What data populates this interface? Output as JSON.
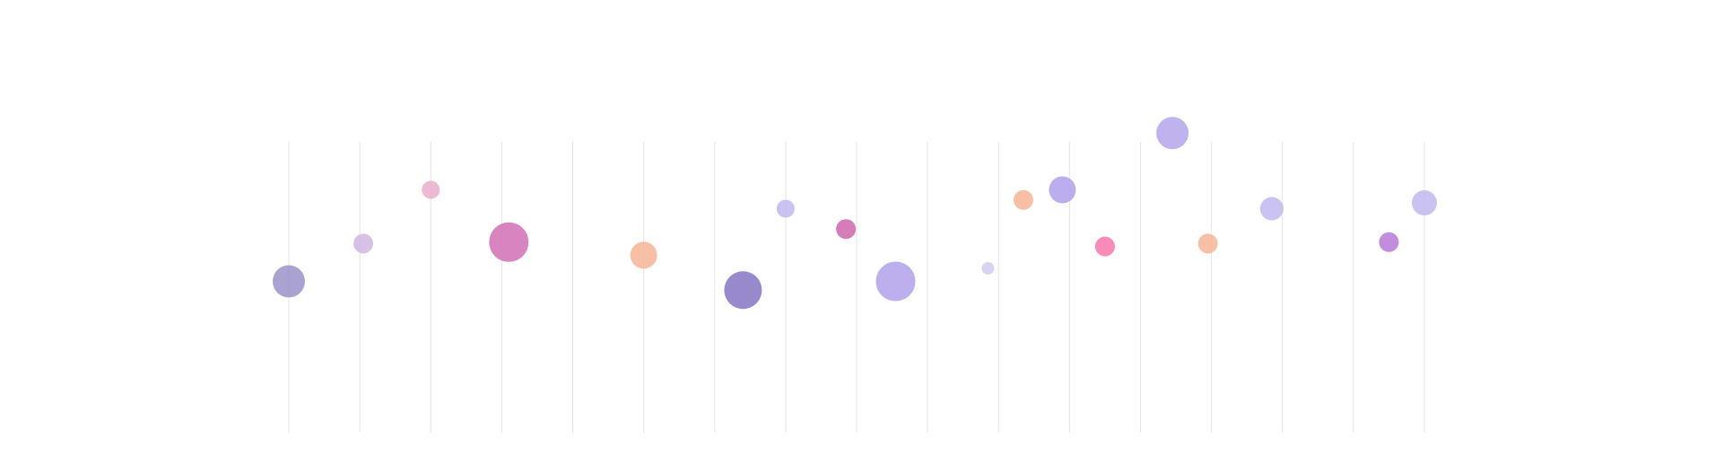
{
  "chart_data": {
    "type": "scatter",
    "title": "",
    "xlabel": "",
    "ylabel": "",
    "xlim": [
      0,
      16
    ],
    "ylim": [
      0,
      100
    ],
    "grid": "vertical",
    "legend": "none",
    "points": [
      {
        "x": 0.0,
        "y": 52.0,
        "size": 18,
        "color": "#9b93c9",
        "opacity": 0.85
      },
      {
        "x": 1.05,
        "y": 65.0,
        "size": 11,
        "color": "#cdb3e0",
        "opacity": 0.8
      },
      {
        "x": 2.0,
        "y": 83.5,
        "size": 10,
        "color": "#e9aecb",
        "opacity": 0.85
      },
      {
        "x": 3.1,
        "y": 65.5,
        "size": 22,
        "color": "#d477b9",
        "opacity": 0.9
      },
      {
        "x": 5.0,
        "y": 61.0,
        "size": 15,
        "color": "#f6b597",
        "opacity": 0.85
      },
      {
        "x": 6.4,
        "y": 49.0,
        "size": 21,
        "color": "#8d7cc6",
        "opacity": 0.9
      },
      {
        "x": 7.0,
        "y": 77.0,
        "size": 10,
        "color": "#c1b7ef",
        "opacity": 0.85
      },
      {
        "x": 7.85,
        "y": 70.0,
        "size": 11,
        "color": "#cf6fb0",
        "opacity": 0.9
      },
      {
        "x": 8.55,
        "y": 52.0,
        "size": 22,
        "color": "#b6a6ec",
        "opacity": 0.9
      },
      {
        "x": 9.85,
        "y": 56.5,
        "size": 7,
        "color": "#cfcbf1",
        "opacity": 0.85
      },
      {
        "x": 10.35,
        "y": 80.0,
        "size": 11,
        "color": "#f6b597",
        "opacity": 0.85
      },
      {
        "x": 10.9,
        "y": 83.5,
        "size": 15,
        "color": "#b09fec",
        "opacity": 0.85
      },
      {
        "x": 11.5,
        "y": 64.0,
        "size": 11,
        "color": "#f77eb0",
        "opacity": 0.9
      },
      {
        "x": 12.45,
        "y": 103.0,
        "size": 18,
        "color": "#b4a5ea",
        "opacity": 0.85
      },
      {
        "x": 12.95,
        "y": 65.0,
        "size": 11,
        "color": "#f6b597",
        "opacity": 0.85
      },
      {
        "x": 13.85,
        "y": 77.0,
        "size": 13,
        "color": "#c1b7ef",
        "opacity": 0.85
      },
      {
        "x": 15.5,
        "y": 65.5,
        "size": 11,
        "color": "#bb7fdc",
        "opacity": 0.9
      },
      {
        "x": 16.0,
        "y": 79.0,
        "size": 14,
        "color": "#c1b7ef",
        "opacity": 0.85
      }
    ]
  }
}
